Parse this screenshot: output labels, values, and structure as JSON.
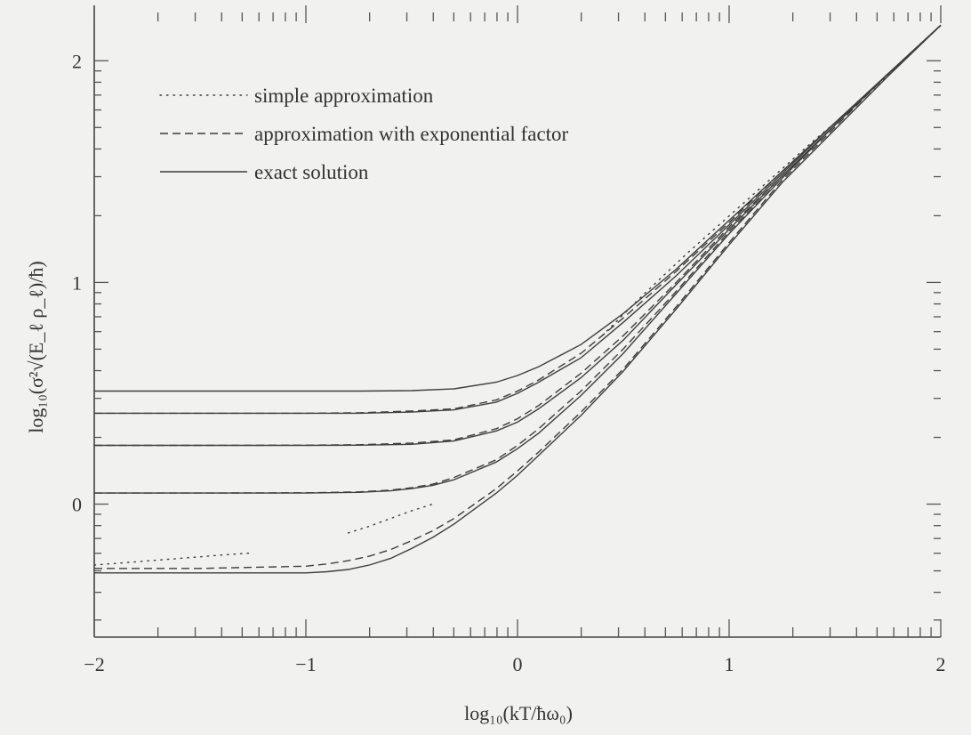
{
  "chart_data": {
    "type": "line",
    "xlabel": "log₁₀(kT/ħω₀)",
    "ylabel": "log₁₀(σ²√(E_ℓ ρ_ℓ)/ħ)",
    "xlim": [
      -2,
      2
    ],
    "ylim": [
      -0.6,
      2.25
    ],
    "x_ticks": [
      -2,
      -1,
      0,
      1,
      2
    ],
    "x_tick_labels": [
      "−2",
      "−1",
      "0",
      "1",
      "2"
    ],
    "y_ticks": [
      0,
      1,
      2
    ],
    "y_tick_labels": [
      "0",
      "1",
      "2"
    ],
    "x_scale_note": "log-spaced minor ticks",
    "grid": false,
    "legend_position": "top-left",
    "legend": [
      {
        "label": "simple approximation",
        "style": "dotted"
      },
      {
        "label": "approximation with exponential factor",
        "style": "dashed"
      },
      {
        "label": "exact solution",
        "style": "solid"
      }
    ],
    "colors": {
      "line": "#3e3e3e",
      "background": "#f1f1f0",
      "axis": "#444444"
    },
    "series": [
      {
        "style": "solid",
        "x": [
          -2,
          -1.5,
          -1,
          -0.75,
          -0.5,
          -0.3,
          -0.1,
          0,
          0.1,
          0.3,
          0.5,
          0.75,
          1,
          1.25,
          1.5,
          1.75,
          2
        ],
        "y": [
          0.51,
          0.51,
          0.51,
          0.51,
          0.512,
          0.52,
          0.55,
          0.58,
          0.62,
          0.72,
          0.86,
          1.06,
          1.28,
          1.5,
          1.72,
          1.94,
          2.16
        ]
      },
      {
        "style": "solid",
        "x": [
          -2,
          -1.5,
          -1,
          -0.75,
          -0.5,
          -0.3,
          -0.1,
          0,
          0.1,
          0.3,
          0.5,
          0.75,
          1,
          1.25,
          1.5,
          1.75,
          2
        ],
        "y": [
          0.41,
          0.41,
          0.41,
          0.41,
          0.415,
          0.425,
          0.46,
          0.5,
          0.55,
          0.66,
          0.82,
          1.03,
          1.26,
          1.49,
          1.72,
          1.94,
          2.16
        ]
      },
      {
        "style": "solid",
        "x": [
          -2,
          -1.5,
          -1,
          -0.75,
          -0.5,
          -0.3,
          -0.1,
          0,
          0.1,
          0.3,
          0.5,
          0.75,
          1,
          1.25,
          1.5,
          1.75,
          2
        ],
        "y": [
          0.265,
          0.265,
          0.265,
          0.266,
          0.27,
          0.285,
          0.33,
          0.37,
          0.43,
          0.57,
          0.74,
          0.99,
          1.24,
          1.48,
          1.71,
          1.94,
          2.16
        ]
      },
      {
        "style": "solid",
        "x": [
          -2,
          -1.5,
          -1,
          -0.75,
          -0.6,
          -0.5,
          -0.4,
          -0.3,
          -0.1,
          0,
          0.1,
          0.3,
          0.5,
          0.75,
          1,
          1.25,
          1.5,
          1.75,
          2
        ],
        "y": [
          0.05,
          0.05,
          0.05,
          0.053,
          0.06,
          0.07,
          0.085,
          0.11,
          0.19,
          0.25,
          0.32,
          0.49,
          0.68,
          0.95,
          1.22,
          1.47,
          1.71,
          1.94,
          2.16
        ]
      },
      {
        "style": "solid",
        "x": [
          -2,
          -1.5,
          -1,
          -0.9,
          -0.8,
          -0.7,
          -0.6,
          -0.5,
          -0.4,
          -0.3,
          -0.1,
          0,
          0.1,
          0.3,
          0.5,
          0.75,
          1,
          1.25,
          1.5,
          1.75,
          2
        ],
        "y": [
          -0.31,
          -0.31,
          -0.31,
          -0.305,
          -0.295,
          -0.275,
          -0.245,
          -0.2,
          -0.15,
          -0.09,
          0.05,
          0.13,
          0.22,
          0.4,
          0.6,
          0.88,
          1.17,
          1.45,
          1.69,
          1.93,
          2.16
        ]
      },
      {
        "style": "dashed",
        "x": [
          -2,
          -1.5,
          -1,
          -0.75,
          -0.5,
          -0.3,
          -0.1,
          0,
          0.1,
          0.3,
          0.5,
          0.75,
          1,
          1.25,
          1.5,
          1.75,
          2
        ],
        "y": [
          0.41,
          0.41,
          0.41,
          0.412,
          0.42,
          0.43,
          0.47,
          0.51,
          0.56,
          0.68,
          0.84,
          1.05,
          1.27,
          1.5,
          1.72,
          1.94,
          2.16
        ]
      },
      {
        "style": "dashed",
        "x": [
          -2,
          -1.5,
          -1,
          -0.75,
          -0.5,
          -0.3,
          -0.1,
          0,
          0.1,
          0.3,
          0.5,
          0.75,
          1,
          1.25,
          1.5,
          1.75,
          2
        ],
        "y": [
          0.265,
          0.265,
          0.266,
          0.268,
          0.275,
          0.29,
          0.34,
          0.385,
          0.445,
          0.59,
          0.76,
          1.0,
          1.25,
          1.48,
          1.71,
          1.94,
          2.16
        ]
      },
      {
        "style": "dashed",
        "x": [
          -2,
          -1.5,
          -1,
          -0.75,
          -0.6,
          -0.5,
          -0.4,
          -0.3,
          -0.1,
          0,
          0.1,
          0.3,
          0.5,
          0.75,
          1,
          1.25,
          1.5,
          1.75,
          2
        ],
        "y": [
          0.05,
          0.05,
          0.051,
          0.055,
          0.063,
          0.074,
          0.09,
          0.12,
          0.2,
          0.265,
          0.34,
          0.51,
          0.7,
          0.96,
          1.23,
          1.47,
          1.71,
          1.94,
          2.16
        ]
      },
      {
        "style": "dashed",
        "x": [
          -2,
          -1.5,
          -1,
          -0.9,
          -0.8,
          -0.7,
          -0.6,
          -0.5,
          -0.4,
          -0.3,
          -0.1,
          0,
          0.1,
          0.3,
          0.5,
          0.75,
          1,
          1.25,
          1.5,
          1.75,
          2
        ],
        "y": [
          -0.29,
          -0.29,
          -0.28,
          -0.27,
          -0.255,
          -0.235,
          -0.205,
          -0.165,
          -0.12,
          -0.065,
          0.07,
          0.15,
          0.235,
          0.415,
          0.61,
          0.89,
          1.18,
          1.46,
          1.7,
          1.94,
          2.16
        ]
      },
      {
        "style": "dotted",
        "x": [
          -2,
          -1.8,
          -1.6,
          -1.4,
          -1.25
        ],
        "y": [
          -0.275,
          -0.26,
          -0.245,
          -0.23,
          -0.22
        ]
      },
      {
        "style": "dotted",
        "x": [
          -0.8,
          -0.7,
          -0.6,
          -0.5,
          -0.4
        ],
        "y": [
          -0.13,
          -0.1,
          -0.065,
          -0.03,
          0.0
        ]
      },
      {
        "style": "dotted",
        "x": [
          0.4,
          0.6,
          0.8,
          1.0,
          1.2,
          1.4,
          1.6,
          1.8,
          2.0
        ],
        "y": [
          0.76,
          0.95,
          1.13,
          1.3,
          1.47,
          1.64,
          1.8,
          1.98,
          2.16
        ]
      }
    ]
  }
}
